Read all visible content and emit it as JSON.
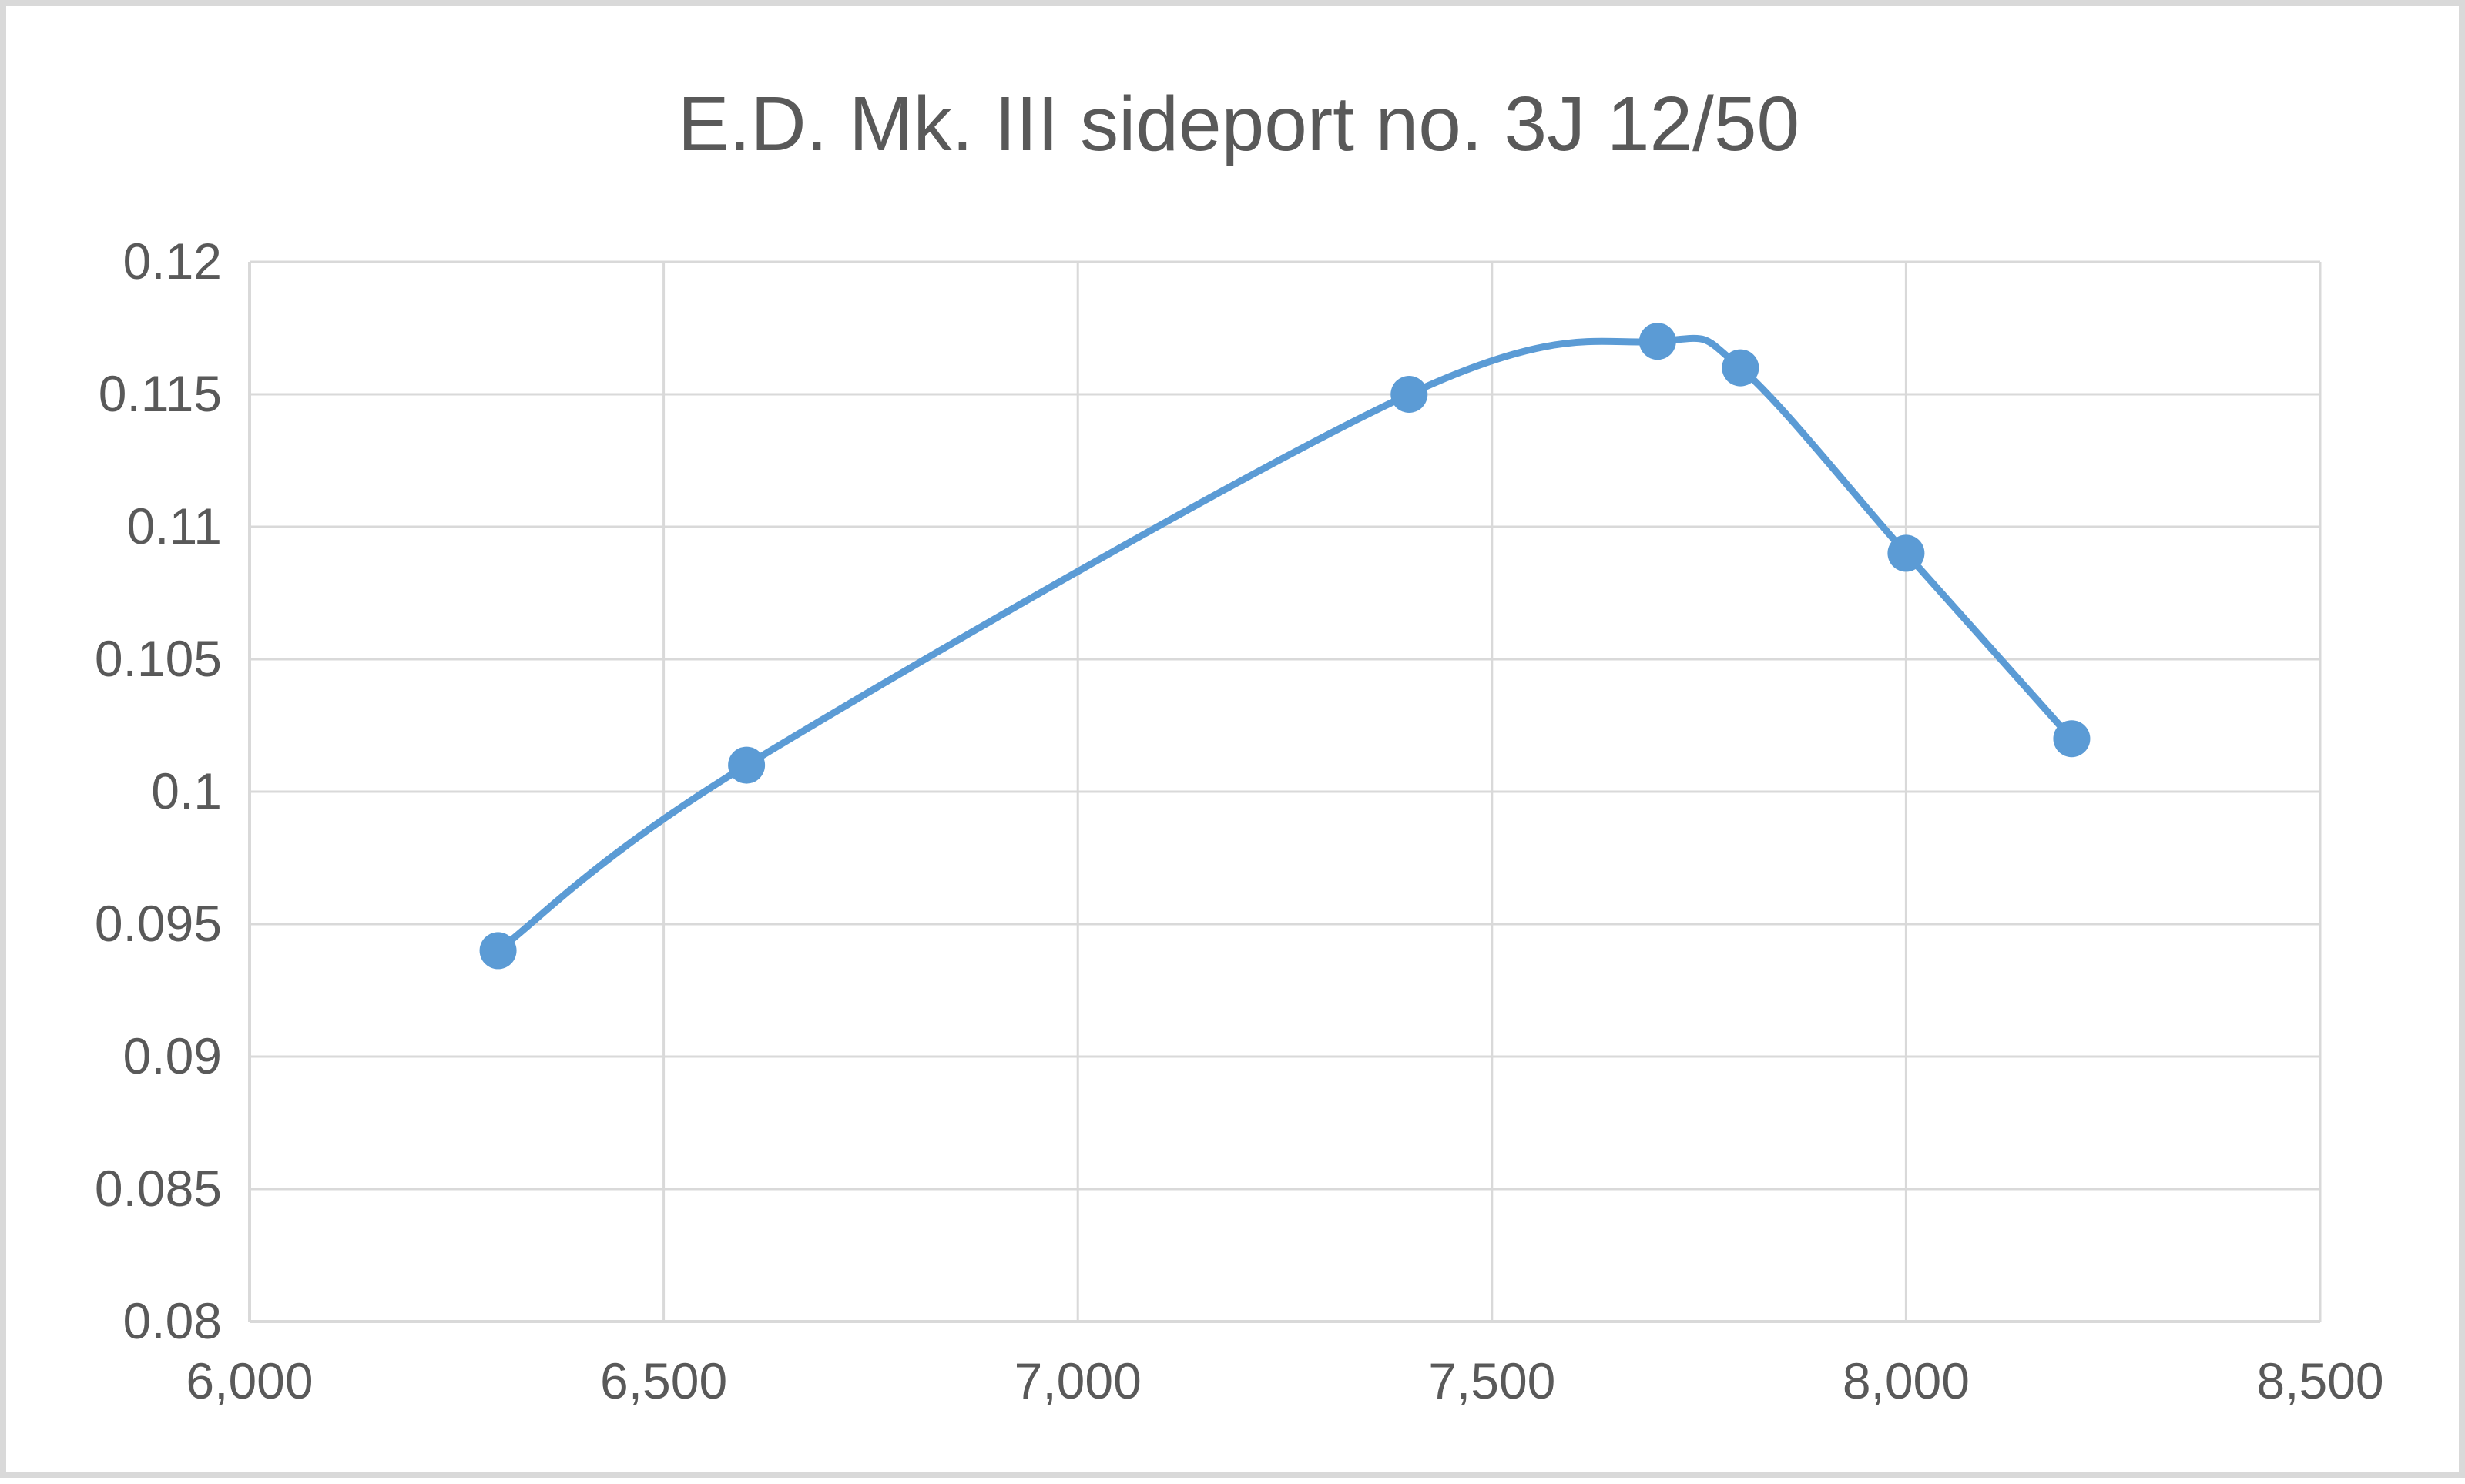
{
  "chart_data": {
    "type": "line",
    "title": "E.D. Mk. III sideport no. 3J 12/50",
    "xlabel": "",
    "ylabel": "",
    "xlim": [
      6000,
      8500
    ],
    "ylim": [
      0.08,
      0.12
    ],
    "x_ticks": [
      6000,
      6500,
      7000,
      7500,
      8000,
      8500
    ],
    "x_tick_labels": [
      "6,000",
      "6,500",
      "7,000",
      "7,500",
      "8,000",
      "8,500"
    ],
    "y_ticks": [
      0.08,
      0.085,
      0.09,
      0.095,
      0.1,
      0.105,
      0.11,
      0.115,
      0.12
    ],
    "y_tick_labels": [
      "0.08",
      "0.085",
      "0.09",
      "0.095",
      "0.1",
      "0.105",
      "0.11",
      "0.115",
      "0.12"
    ],
    "grid": true,
    "legend": "none",
    "smooth": true,
    "series": [
      {
        "color": "#5b9bd5",
        "marker": "circle",
        "x": [
          6300,
          6600,
          7400,
          7700,
          7800,
          8000,
          8200
        ],
        "y": [
          0.094,
          0.101,
          0.115,
          0.117,
          0.116,
          0.109,
          0.102
        ]
      }
    ],
    "colors": {
      "grid": "#d9d9d9",
      "axis_text": "#595959",
      "frame": "#d9d9d9"
    }
  }
}
